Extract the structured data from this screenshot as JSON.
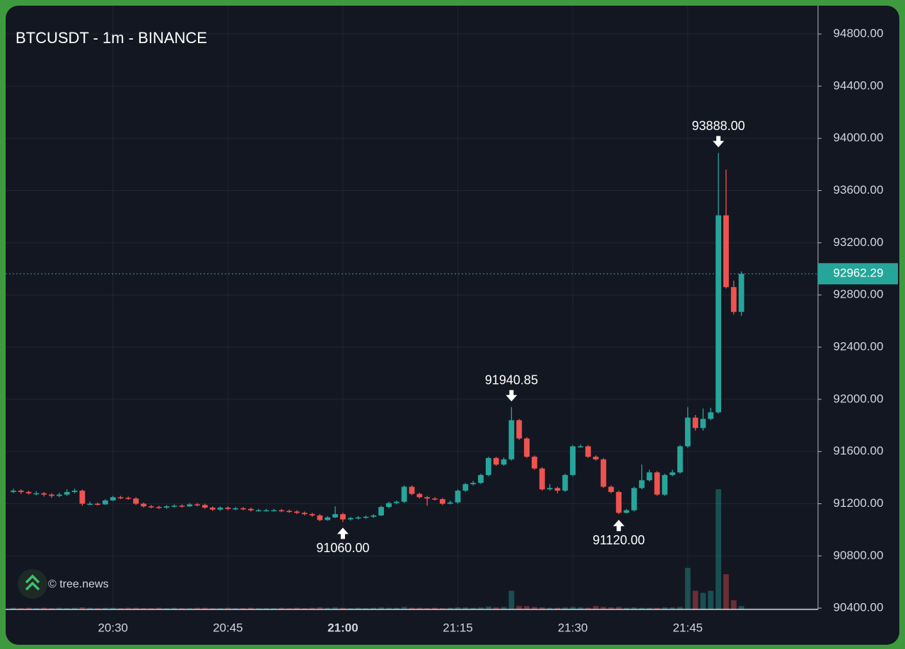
{
  "chart_data": {
    "type": "candlestick",
    "title": "BTCUSDT - 1m - BINANCE",
    "watermark": "© tree.news",
    "up_color": "#26a69a",
    "down_color": "#ef5350",
    "grid": true,
    "x": [
      "20:17",
      "20:18",
      "20:19",
      "20:20",
      "20:21",
      "20:22",
      "20:23",
      "20:24",
      "20:25",
      "20:26",
      "20:27",
      "20:28",
      "20:29",
      "20:30",
      "20:31",
      "20:32",
      "20:33",
      "20:34",
      "20:35",
      "20:36",
      "20:37",
      "20:38",
      "20:39",
      "20:40",
      "20:41",
      "20:42",
      "20:43",
      "20:44",
      "20:45",
      "20:46",
      "20:47",
      "20:48",
      "20:49",
      "20:50",
      "20:51",
      "20:52",
      "20:53",
      "20:54",
      "20:55",
      "20:56",
      "20:57",
      "20:58",
      "20:59",
      "21:00",
      "21:01",
      "21:02",
      "21:03",
      "21:04",
      "21:05",
      "21:06",
      "21:07",
      "21:08",
      "21:09",
      "21:10",
      "21:11",
      "21:12",
      "21:13",
      "21:14",
      "21:15",
      "21:16",
      "21:17",
      "21:18",
      "21:19",
      "21:20",
      "21:21",
      "21:22",
      "21:23",
      "21:24",
      "21:25",
      "21:26",
      "21:27",
      "21:28",
      "21:29",
      "21:30",
      "21:31",
      "21:32",
      "21:33",
      "21:34",
      "21:35",
      "21:36",
      "21:37",
      "21:38",
      "21:39",
      "21:40",
      "21:41",
      "21:42",
      "21:43",
      "21:44",
      "21:45",
      "21:46",
      "21:47",
      "21:48",
      "21:49",
      "21:50",
      "21:51",
      "21:52"
    ],
    "open": [
      91290,
      91300,
      91290,
      91280,
      91280,
      91270,
      91260,
      91270,
      91290,
      91300,
      91200,
      91200,
      91195,
      91225,
      91250,
      91245,
      91240,
      91200,
      91180,
      91175,
      91170,
      91180,
      91185,
      91180,
      91195,
      91190,
      91170,
      91155,
      91170,
      91160,
      91165,
      91160,
      91150,
      91150,
      91150,
      91150,
      91145,
      91140,
      91130,
      91120,
      91110,
      91075,
      91095,
      91120,
      91080,
      91090,
      91095,
      91100,
      91110,
      91175,
      91205,
      91215,
      91330,
      91275,
      91250,
      91240,
      91235,
      91200,
      91210,
      91300,
      91350,
      91360,
      91420,
      91550,
      91500,
      91540,
      91840,
      91700,
      91560,
      91470,
      91310,
      91320,
      91300,
      91420,
      91640,
      91640,
      91560,
      91540,
      91330,
      91290,
      91130,
      91150,
      91320,
      91380,
      91440,
      91270,
      91420,
      91440,
      91640,
      91860,
      91780,
      91850,
      91900,
      93410,
      92860,
      92670
    ],
    "high": [
      91315,
      91310,
      91300,
      91295,
      91290,
      91280,
      91285,
      91310,
      91315,
      91310,
      91215,
      91210,
      91235,
      91260,
      91260,
      91255,
      91250,
      91210,
      91190,
      91185,
      91190,
      91195,
      91195,
      91205,
      91205,
      91200,
      91180,
      91180,
      91180,
      91175,
      91175,
      91170,
      91160,
      91160,
      91160,
      91160,
      91155,
      91150,
      91140,
      91130,
      91120,
      91105,
      91180,
      91130,
      91100,
      91105,
      91110,
      91120,
      91185,
      91215,
      91225,
      91340,
      91340,
      91285,
      91260,
      91250,
      91245,
      91225,
      91310,
      91360,
      91375,
      91430,
      91560,
      91560,
      91555,
      91940.85,
      91850,
      91710,
      91570,
      91480,
      91350,
      91330,
      91430,
      91650,
      91655,
      91650,
      91570,
      91550,
      91340,
      91300,
      91160,
      91330,
      91500,
      91460,
      91450,
      91430,
      91460,
      91650,
      91940,
      91880,
      91930,
      91935,
      93888,
      93760,
      92910,
      92980
    ],
    "low": [
      91280,
      91275,
      91270,
      91265,
      91255,
      91245,
      91250,
      91260,
      91280,
      91185,
      91190,
      91185,
      91190,
      91220,
      91235,
      91230,
      91190,
      91170,
      91165,
      91160,
      91160,
      91170,
      91170,
      91175,
      91180,
      91160,
      91145,
      91145,
      91150,
      91150,
      91150,
      91140,
      91140,
      91140,
      91140,
      91135,
      91130,
      91120,
      91110,
      91100,
      91065,
      91070,
      91090,
      91060,
      91070,
      91080,
      91085,
      91090,
      91105,
      91165,
      91195,
      91205,
      91265,
      91240,
      91185,
      91225,
      91190,
      91195,
      91200,
      91290,
      91340,
      91350,
      91410,
      91490,
      91490,
      91530,
      91690,
      91550,
      91460,
      91300,
      91300,
      91280,
      91290,
      91410,
      91630,
      91550,
      91530,
      91320,
      91280,
      91120,
      91125,
      91140,
      91310,
      91370,
      91260,
      91260,
      91410,
      91430,
      91630,
      91760,
      91760,
      91840,
      91890,
      92850,
      92650,
      92640
    ],
    "close": [
      91300,
      91290,
      91280,
      91280,
      91270,
      91260,
      91270,
      91290,
      91300,
      91200,
      91200,
      91195,
      91225,
      91250,
      91245,
      91240,
      91200,
      91180,
      91175,
      91170,
      91180,
      91185,
      91180,
      91195,
      91190,
      91170,
      91155,
      91170,
      91160,
      91165,
      91160,
      91150,
      91150,
      91150,
      91150,
      91145,
      91140,
      91130,
      91120,
      91110,
      91075,
      91095,
      91120,
      91080,
      91090,
      91095,
      91100,
      91110,
      91175,
      91205,
      91215,
      91330,
      91275,
      91250,
      91240,
      91235,
      91200,
      91210,
      91300,
      91350,
      91360,
      91420,
      91550,
      91500,
      91540,
      91840,
      91700,
      91560,
      91470,
      91310,
      91320,
      91300,
      91420,
      91640,
      91640,
      91560,
      91540,
      91330,
      91290,
      91130,
      91150,
      91320,
      91380,
      91440,
      91270,
      91420,
      91440,
      91640,
      91860,
      91780,
      91850,
      91900,
      93410,
      92860,
      92670,
      92962.29
    ],
    "volume": [
      4,
      3,
      4,
      3,
      4,
      3,
      4,
      3,
      4,
      5,
      4,
      3,
      4,
      4,
      3,
      4,
      4,
      3,
      3,
      4,
      3,
      4,
      3,
      3,
      4,
      4,
      3,
      3,
      4,
      3,
      3,
      4,
      3,
      3,
      3,
      4,
      3,
      4,
      3,
      4,
      5,
      4,
      5,
      4,
      3,
      4,
      3,
      4,
      5,
      4,
      4,
      6,
      4,
      4,
      3,
      4,
      3,
      4,
      5,
      5,
      4,
      5,
      7,
      5,
      6,
      45,
      8,
      8,
      6,
      5,
      4,
      4,
      5,
      6,
      5,
      4,
      8,
      6,
      5,
      6,
      4,
      5,
      4,
      4,
      4,
      5,
      5,
      6,
      100,
      45,
      40,
      45,
      290,
      85,
      22,
      8
    ],
    "high_value_labels": [
      null,
      null,
      null,
      null,
      null,
      null,
      null,
      null,
      null,
      null,
      null,
      null,
      null,
      null,
      null,
      null,
      null,
      null,
      null,
      null,
      null,
      null,
      null,
      null,
      null,
      null,
      null,
      null,
      null,
      null,
      null,
      null,
      null,
      null,
      null,
      null,
      null,
      null,
      null,
      null,
      null,
      null,
      null,
      null,
      null,
      null,
      null,
      null,
      null,
      null,
      null,
      null,
      null,
      null,
      null,
      null,
      null,
      null,
      null,
      null,
      null,
      null,
      null,
      null,
      null,
      "91940.85",
      null,
      null,
      null,
      null,
      null,
      null,
      null,
      null,
      null,
      null,
      null,
      null,
      null,
      null,
      null,
      null,
      null,
      null,
      null,
      null,
      null,
      null,
      null,
      null,
      null,
      null,
      "93888.00",
      null,
      null,
      null
    ],
    "low_value_labels": [
      null,
      null,
      null,
      null,
      null,
      null,
      null,
      null,
      null,
      null,
      null,
      null,
      null,
      null,
      null,
      null,
      null,
      null,
      null,
      null,
      null,
      null,
      null,
      null,
      null,
      null,
      null,
      null,
      null,
      null,
      null,
      null,
      null,
      null,
      null,
      null,
      null,
      null,
      null,
      null,
      null,
      null,
      null,
      "91060.00",
      null,
      null,
      null,
      null,
      null,
      null,
      null,
      null,
      null,
      null,
      null,
      null,
      null,
      null,
      null,
      null,
      null,
      null,
      null,
      null,
      null,
      null,
      null,
      null,
      null,
      null,
      null,
      null,
      null,
      null,
      null,
      null,
      null,
      null,
      null,
      "91120.00",
      null,
      null,
      null,
      null,
      null,
      null,
      null,
      null,
      null,
      null,
      null,
      null,
      null,
      null,
      null,
      null
    ],
    "last_price": 92962.29,
    "xlim": [
      "20:16",
      "22:02"
    ],
    "xticks": [
      "20:30",
      "20:45",
      "21:00",
      "21:15",
      "21:30",
      "21:45"
    ],
    "ylim": [
      90390,
      95017
    ],
    "yticks": [
      {
        "value": 90400,
        "label": "90400.00"
      },
      {
        "value": 90800,
        "label": "90800.00"
      },
      {
        "value": 91200,
        "label": "91200.00"
      },
      {
        "value": 91600,
        "label": "91600.00"
      },
      {
        "value": 92000,
        "label": "92000.00"
      },
      {
        "value": 92400,
        "label": "92400.00"
      },
      {
        "value": 92800,
        "label": "92800.00"
      },
      {
        "value": 93200,
        "label": "93200.00"
      },
      {
        "value": 93600,
        "label": "93600.00"
      },
      {
        "value": 94000,
        "label": "94000.00"
      },
      {
        "value": 94400,
        "label": "94400.00"
      },
      {
        "value": 94800,
        "label": "94800.00"
      }
    ]
  }
}
